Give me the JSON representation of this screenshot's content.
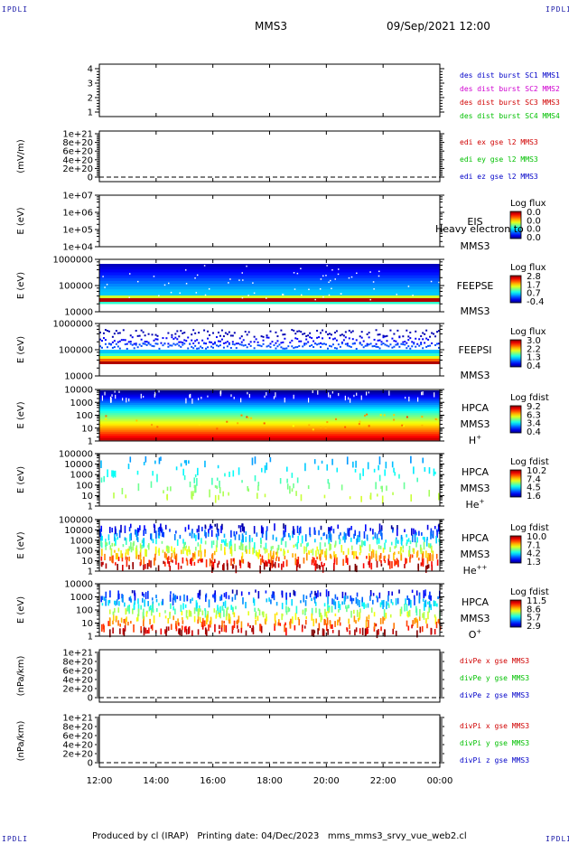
{
  "header": {
    "corner_label": "IPDLI",
    "title": "MMS3",
    "datetime": "09/Sep/2021 12:00"
  },
  "footer": {
    "text": "Produced by cl (IRAP)   Printing date: 04/Dec/2023   mms_mms3_srvy_vue_web2.cl"
  },
  "colors": {
    "blue": "#0000c8",
    "magenta": "#d000d0",
    "red": "#d00000",
    "green": "#00c000"
  },
  "chart_data": {
    "type": "heatmap",
    "x_ticks": [
      "12:00",
      "14:00",
      "16:00",
      "18:00",
      "20:00",
      "22:00",
      "00:00"
    ],
    "panels": [
      {
        "id": "burst",
        "type": "line",
        "ylabel": "",
        "yticks": [
          "4",
          "3",
          "2",
          "1"
        ],
        "legend": [
          {
            "text": "des dist burst SC1 MMS1",
            "color": "#0000c8"
          },
          {
            "text": "des dist burst SC2 MMS2",
            "color": "#d000d0"
          },
          {
            "text": "des dist burst SC3 MMS3",
            "color": "#d00000"
          },
          {
            "text": "des dist burst SC4 MMS4",
            "color": "#00c000"
          }
        ]
      },
      {
        "id": "edi",
        "type": "line",
        "ylabel": "(mV/m)",
        "yticks": [
          "1e+21",
          "8e+20",
          "6e+20",
          "4e+20",
          "2e+20",
          "0"
        ],
        "zero_line": true,
        "legend": [
          {
            "text": "edi ex gse l2 MMS3",
            "color": "#d00000"
          },
          {
            "text": "edi ey gse l2 MMS3",
            "color": "#00c000"
          },
          {
            "text": "edi ez gse l2 MMS3",
            "color": "#0000c8"
          }
        ]
      },
      {
        "id": "eis",
        "type": "heatmap",
        "ylabel": "E (eV)",
        "yticks": [
          "1e+07",
          "1e+06",
          "1e+05",
          "1e+04"
        ],
        "labels": [
          "EIS",
          "MMS3"
        ],
        "overlay": "Heavy electron to",
        "colorbar_title": "Log flux",
        "colorbar_ticks": [
          "0.0",
          "0.0",
          "0.0",
          "0.0"
        ],
        "pattern": "empty"
      },
      {
        "id": "feeps_e",
        "type": "heatmap",
        "ylabel": "E (eV)",
        "yticks": [
          "1000000",
          "100000",
          "10000"
        ],
        "labels": [
          "FEEPSE",
          "MMS3"
        ],
        "colorbar_title": "Log flux",
        "colorbar_ticks": [
          "2.8",
          "1.7",
          "0.7",
          "-0.4"
        ],
        "pattern": "feepse"
      },
      {
        "id": "feeps_i",
        "type": "heatmap",
        "ylabel": "E (eV)",
        "yticks": [
          "1000000",
          "100000",
          "10000"
        ],
        "labels": [
          "FEEPSI",
          "MMS3"
        ],
        "colorbar_title": "Log flux",
        "colorbar_ticks": [
          "3.0",
          "2.2",
          "1.3",
          "0.4"
        ],
        "pattern": "feepsi"
      },
      {
        "id": "hpca_h",
        "type": "heatmap",
        "ylabel": "E (eV)",
        "yticks": [
          "10000",
          "1000",
          "100",
          "10",
          "1"
        ],
        "labels": [
          "HPCA",
          "MMS3"
        ],
        "species": "H",
        "species_sup": "+",
        "colorbar_title": "Log fdist",
        "colorbar_ticks": [
          "9.2",
          "6.3",
          "3.4",
          "0.4"
        ],
        "pattern": "hpca_h"
      },
      {
        "id": "hpca_he",
        "type": "heatmap",
        "ylabel": "E (eV)",
        "yticks": [
          "100000",
          "10000",
          "1000",
          "100",
          "10",
          "1"
        ],
        "labels": [
          "HPCA",
          "MMS3"
        ],
        "species": "He",
        "species_sup": "+",
        "colorbar_title": "Log fdist",
        "colorbar_ticks": [
          "10.2",
          "7.4",
          "4.5",
          "1.6"
        ],
        "pattern": "hpca_he1"
      },
      {
        "id": "hpca_he2",
        "type": "heatmap",
        "ylabel": "E (eV)",
        "yticks": [
          "100000",
          "10000",
          "1000",
          "100",
          "10",
          "1"
        ],
        "labels": [
          "HPCA",
          "MMS3"
        ],
        "species": "He",
        "species_sup": "++",
        "colorbar_title": "Log fdist",
        "colorbar_ticks": [
          "10.0",
          "7.1",
          "4.2",
          "1.3"
        ],
        "pattern": "hpca_he2"
      },
      {
        "id": "hpca_o",
        "type": "heatmap",
        "ylabel": "E (eV)",
        "yticks": [
          "10000",
          "1000",
          "100",
          "10",
          "1"
        ],
        "labels": [
          "HPCA",
          "MMS3"
        ],
        "species": "O",
        "species_sup": "+",
        "colorbar_title": "Log fdist",
        "colorbar_ticks": [
          "11.5",
          "8.6",
          "5.7",
          "2.9"
        ],
        "pattern": "hpca_o"
      },
      {
        "id": "divpe",
        "type": "line",
        "ylabel": "(nPa/km)",
        "yticks": [
          "1e+21",
          "8e+20",
          "6e+20",
          "4e+20",
          "2e+20",
          "0"
        ],
        "zero_line": true,
        "legend": [
          {
            "text": "divPe x gse MMS3",
            "color": "#d00000"
          },
          {
            "text": "divPe y gse MMS3",
            "color": "#00c000"
          },
          {
            "text": "divPe z gse MMS3",
            "color": "#0000c8"
          }
        ]
      },
      {
        "id": "divpi",
        "type": "line",
        "ylabel": "(nPa/km)",
        "yticks": [
          "1e+21",
          "8e+20",
          "6e+20",
          "4e+20",
          "2e+20",
          "0"
        ],
        "zero_line": true,
        "legend": [
          {
            "text": "divPi x gse MMS3",
            "color": "#d00000"
          },
          {
            "text": "divPi y gse MMS3",
            "color": "#00c000"
          },
          {
            "text": "divPi z gse MMS3",
            "color": "#0000c8"
          }
        ]
      }
    ]
  }
}
